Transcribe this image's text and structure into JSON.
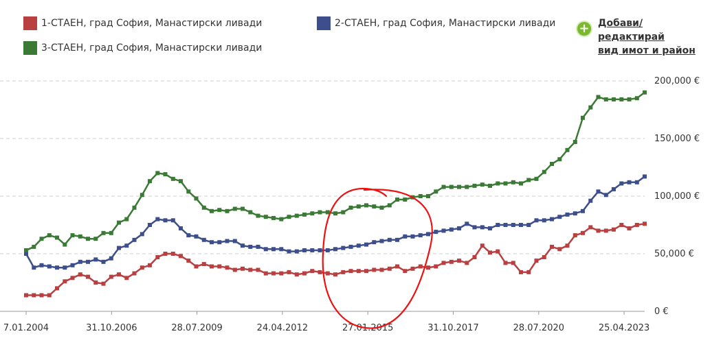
{
  "legend": [
    {
      "label": "1-СТАЕН, град София, Манастирски ливади",
      "color": "#b84040"
    },
    {
      "label": "2-СТАЕН, град София, Манастирски ливади",
      "color": "#3c4e8c"
    },
    {
      "label": "3-СТАЕН, град София, Манастирски ливади",
      "color": "#3a7a34"
    }
  ],
  "add_link": {
    "line1": "Добави/редактирай",
    "line2": "вид имот и район",
    "icon": "plus-circle-icon"
  },
  "chart_data": {
    "type": "line",
    "x_ticks": [
      "7.01.2004",
      "31.10.2006",
      "28.07.2009",
      "24.04.2012",
      "27.01.2015",
      "31.10.2017",
      "28.07.2020",
      "25.04.2023"
    ],
    "y_ticks": [
      "0 €",
      "50,000 €",
      "100,000 €",
      "150,000 €",
      "200,000 €"
    ],
    "ylim": [
      0,
      200000
    ],
    "grid": true,
    "annotation": "red hand-drawn circle around 2014–2016",
    "series": [
      {
        "name": "1-СТАЕН, град София, Манастирски ливади",
        "color": "#b84040",
        "values": [
          14000,
          14000,
          14000,
          14000,
          20000,
          26000,
          29000,
          32000,
          30000,
          25000,
          24000,
          30000,
          32000,
          29000,
          33000,
          38000,
          40000,
          47000,
          50000,
          50000,
          48000,
          44000,
          39000,
          41000,
          39000,
          39000,
          38000,
          36000,
          37000,
          36000,
          36000,
          33000,
          33000,
          33000,
          34000,
          32000,
          33000,
          35000,
          34000,
          33000,
          32000,
          34000,
          35000,
          35000,
          35000,
          36000,
          36000,
          37000,
          39000,
          35000,
          37000,
          39000,
          38000,
          39000,
          42000,
          43000,
          44000,
          42000,
          47000,
          57000,
          51000,
          52000,
          42000,
          42000,
          34000,
          34000,
          44000,
          47000,
          56000,
          54000,
          57000,
          66000,
          68000,
          73000,
          70000,
          70000,
          71000,
          75000,
          72000,
          75000,
          76000
        ]
      },
      {
        "name": "2-СТАЕН, град София, Манастирски ливади",
        "color": "#3c4e8c",
        "values": [
          50000,
          38000,
          40000,
          39000,
          38000,
          38000,
          40000,
          43000,
          43000,
          45000,
          43000,
          46000,
          55000,
          57000,
          62000,
          67000,
          75000,
          80000,
          79000,
          79000,
          72000,
          66000,
          65000,
          62000,
          60000,
          60000,
          61000,
          61000,
          57000,
          56000,
          56000,
          54000,
          54000,
          54000,
          52000,
          52000,
          53000,
          53000,
          53000,
          53000,
          54000,
          55000,
          56000,
          57000,
          58000,
          60000,
          61000,
          62000,
          62000,
          65000,
          65000,
          66000,
          67000,
          69000,
          70000,
          71000,
          72000,
          76000,
          73000,
          73000,
          72000,
          75000,
          75000,
          75000,
          75000,
          75000,
          79000,
          79000,
          80000,
          82000,
          84000,
          85000,
          87000,
          96000,
          104000,
          101000,
          106000,
          111000,
          112000,
          112000,
          117000
        ]
      },
      {
        "name": "3-СТАЕН, град София, Манастирски ливади",
        "color": "#3a7a34",
        "values": [
          53000,
          56000,
          63000,
          66000,
          64000,
          58000,
          66000,
          65000,
          63000,
          63000,
          68000,
          68000,
          77000,
          80000,
          90000,
          101000,
          113000,
          120000,
          119000,
          115000,
          113000,
          104000,
          98000,
          90000,
          87000,
          88000,
          87000,
          89000,
          89000,
          86000,
          83000,
          82000,
          81000,
          80000,
          82000,
          83000,
          84000,
          85000,
          86000,
          86000,
          85000,
          86000,
          90000,
          91000,
          92000,
          91000,
          90000,
          92000,
          97000,
          97000,
          99000,
          100000,
          100000,
          104000,
          108000,
          108000,
          108000,
          108000,
          109000,
          110000,
          109000,
          111000,
          111000,
          112000,
          111000,
          114000,
          115000,
          121000,
          128000,
          132000,
          140000,
          147000,
          168000,
          177000,
          186000,
          184000,
          184000,
          184000,
          184000,
          185000,
          190000
        ]
      }
    ]
  }
}
